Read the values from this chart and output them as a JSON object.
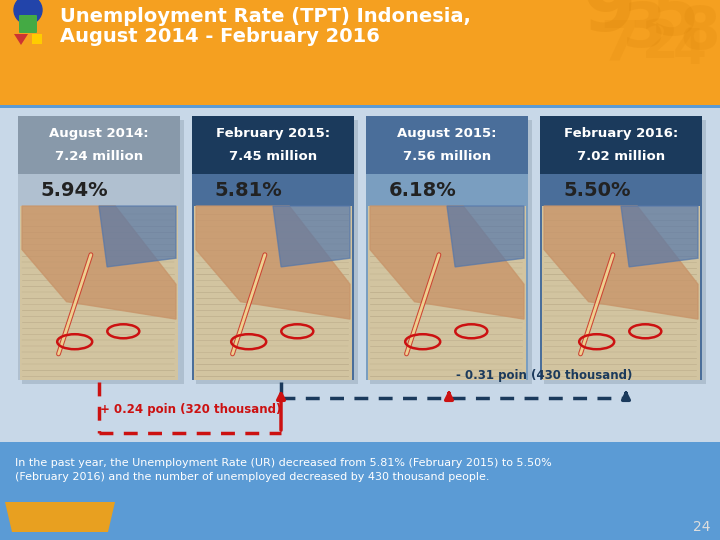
{
  "title_line1": "Unemployment Rate (TPT) Indonesia,",
  "title_line2": "August 2014 - February 2016",
  "header_bg_top": "#F5A020",
  "header_bg_bottom": "#E89010",
  "body_bg_color": "#C8D8E8",
  "footer_bg_color": "#5B9BD5",
  "cards": [
    {
      "period": "August 2014:",
      "million": "7.24 million",
      "pct": "5.94%",
      "header_bg": "#8899AA",
      "card_bg": "#B0C0D0",
      "img_colors": [
        "#C8A882",
        "#9B7B5A",
        "#E8D5B0"
      ],
      "pct_color": "#222222"
    },
    {
      "period": "February 2015:",
      "million": "7.45 million",
      "pct": "5.81%",
      "header_bg": "#1B3A5C",
      "card_bg": "#4A6E9A",
      "img_colors": [
        "#C8A882",
        "#9B7B5A",
        "#E8D5B0"
      ],
      "pct_color": "#222222"
    },
    {
      "period": "August 2015:",
      "million": "7.56 million",
      "pct": "6.18%",
      "header_bg": "#4A6E9A",
      "card_bg": "#7A9EC0",
      "img_colors": [
        "#C8A882",
        "#9B7B5A",
        "#E8D5B0"
      ],
      "pct_color": "#222222"
    },
    {
      "period": "February 2016:",
      "million": "7.02 million",
      "pct": "5.50%",
      "header_bg": "#1B3A5C",
      "card_bg": "#4A6E9A",
      "img_colors": [
        "#C8A882",
        "#9B7B5A",
        "#E8D5B0"
      ],
      "pct_color": "#222222"
    }
  ],
  "arrow1_text": "+ 0.24 poin (320 thousand)",
  "arrow2_text": "- 0.31 poin (430 thousand)",
  "footer_text_line1": "In the past year, the Unemployment Rate (UR) decreased from 5.81% (February 2015) to 5.50%",
  "footer_text_line2": "(February 2016) and the number of unemployed decreased by 430 thousand people.",
  "page_num": "24",
  "orange_box_color": "#E8A020",
  "separator_color": "#5B9BD5",
  "red_arrow_color": "#CC1111",
  "dark_arrow_color": "#1B3A5C"
}
